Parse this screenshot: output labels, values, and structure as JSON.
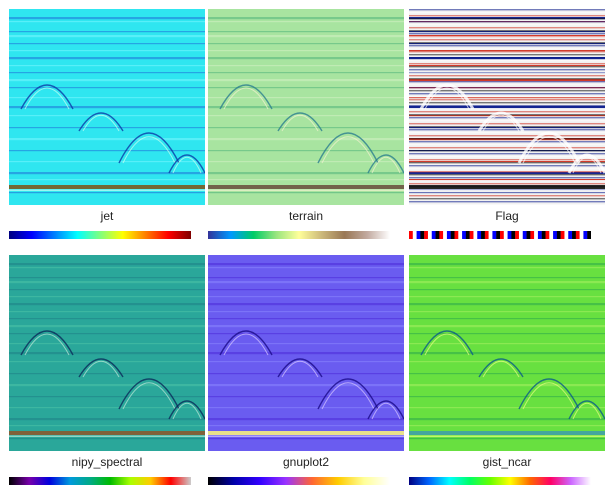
{
  "panels": [
    {
      "label": "jet",
      "colormap": "jet",
      "bg": "#2fe6f0",
      "band_dark": "#1f6fd8",
      "band_light": "#7af5ff",
      "hyperbola": "#0b3aa8",
      "highlight": "#c8fff0",
      "bottom_band": "#7a5a20",
      "colorbar": [
        "#00007f",
        "#0000ff",
        "#007fff",
        "#00ffff",
        "#7fff7f",
        "#ffff00",
        "#ff7f00",
        "#ff0000",
        "#7f0000"
      ]
    },
    {
      "label": "terrain",
      "colormap": "terrain",
      "bg": "#a8e4a0",
      "band_dark": "#4fb27a",
      "band_light": "#d4f0c4",
      "hyperbola": "#2a7e8e",
      "highlight": "#f4f2d0",
      "bottom_band": "#6a5440",
      "colorbar": [
        "#333399",
        "#0099ff",
        "#00cc66",
        "#99e57f",
        "#ffff99",
        "#ccb87a",
        "#997755",
        "#c2aaa0",
        "#ffffff"
      ]
    },
    {
      "label": "Flag",
      "colormap": "flag",
      "bg": "#f2f2f2",
      "band_dark": "#0a1a8c",
      "band_light": "#d03020",
      "hyperbola": "#ffffff",
      "highlight": "#ffffff",
      "bottom_band": "#111111",
      "colorbar": [
        "#ff0000",
        "#ffffff",
        "#0000ff",
        "#000000"
      ]
    },
    {
      "label": "nipy_spectral",
      "colormap": "nipy_spectral",
      "bg": "#2aa79a",
      "band_dark": "#1d7f86",
      "band_light": "#4cc4a8",
      "hyperbola": "#0a2a5a",
      "highlight": "#bfe8d8",
      "bottom_band": "#8a5a30",
      "colorbar": [
        "#000000",
        "#7700aa",
        "#0000dd",
        "#0099dd",
        "#00aa88",
        "#00bb00",
        "#aaff00",
        "#ffcc00",
        "#ff0000",
        "#cccccc"
      ]
    },
    {
      "label": "gnuplot2",
      "colormap": "gnuplot2",
      "bg": "#6a5cf0",
      "band_dark": "#4a2ad8",
      "band_light": "#8a86ff",
      "hyperbola": "#1a0a8a",
      "highlight": "#d8c8ff",
      "bottom_band": "#f8f080",
      "colorbar": [
        "#000000",
        "#0000aa",
        "#3300ff",
        "#9933ff",
        "#ff6633",
        "#ffcc00",
        "#ffff99",
        "#ffffff"
      ]
    },
    {
      "label": "gist_ncar",
      "colormap": "gist_ncar",
      "bg": "#68e040",
      "band_dark": "#2aa84a",
      "band_light": "#a8f060",
      "hyperbola": "#0a5a8a",
      "highlight": "#e8ff80",
      "bottom_band": "#40a0a8",
      "colorbar": [
        "#000080",
        "#0066ff",
        "#00ffff",
        "#00ff66",
        "#66ff00",
        "#ffff00",
        "#ff6600",
        "#ff0066",
        "#cc66ff",
        "#ffffff"
      ]
    }
  ]
}
